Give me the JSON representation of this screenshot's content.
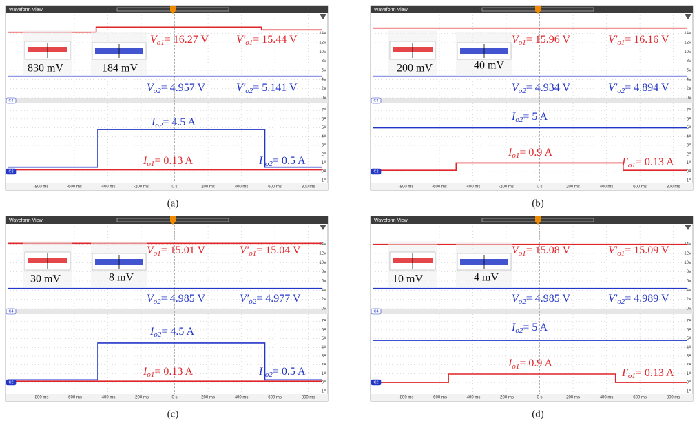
{
  "figure": {
    "header": "Waveform View",
    "channel_labels": [
      "C4",
      "C2"
    ],
    "xlim": [
      -1000,
      880
    ],
    "vlim": [
      -0.3,
      18
    ],
    "ilim": [
      -1.33,
      7.8
    ],
    "time_ticks": [
      {
        "value": -800,
        "label": "-800 ms"
      },
      {
        "value": -600,
        "label": "-600 ms"
      },
      {
        "value": -400,
        "label": "-400 ms"
      },
      {
        "value": -200,
        "label": "-200 ms"
      },
      {
        "value": 0,
        "label": "0 s"
      },
      {
        "value": 200,
        "label": "200 ms"
      },
      {
        "value": 400,
        "label": "400 ms"
      },
      {
        "value": 600,
        "label": "600 ms"
      },
      {
        "value": 800,
        "label": "800 ms"
      }
    ],
    "voltage_ticks": [
      {
        "value": 14,
        "label": "14V"
      },
      {
        "value": 12,
        "label": "12V"
      },
      {
        "value": 10,
        "label": "10V"
      },
      {
        "value": 8,
        "label": "8V"
      },
      {
        "value": 6,
        "label": "6V"
      },
      {
        "value": 4,
        "label": "4V"
      },
      {
        "value": 2,
        "label": "2V"
      },
      {
        "value": 0,
        "label": "0V"
      }
    ],
    "current_ticks": [
      {
        "value": 7,
        "label": "7A"
      },
      {
        "value": 6,
        "label": "6A"
      },
      {
        "value": 5,
        "label": "5A"
      },
      {
        "value": 4,
        "label": "4A"
      },
      {
        "value": 3,
        "label": "3A"
      },
      {
        "value": 2,
        "label": "2A"
      },
      {
        "value": 1,
        "label": "1A"
      },
      {
        "value": 0,
        "label": "0A"
      },
      {
        "value": -1,
        "label": "-1A"
      }
    ],
    "panels": [
      {
        "caption": "(a)",
        "voltage_traces": [
          {
            "color": "#e0262a",
            "points": [
              [
                -1000,
                14.3
              ],
              [
                -470,
                14.3
              ],
              [
                -470,
                15.4
              ],
              [
                520,
                15.4
              ],
              [
                520,
                14.8
              ],
              [
                880,
                14.8
              ]
            ]
          },
          {
            "color": "#2236c8",
            "points": [
              [
                -1000,
                4.7
              ],
              [
                880,
                4.7
              ]
            ]
          }
        ],
        "current_traces": [
          {
            "color": "#e0262a",
            "points": [
              [
                -1000,
                0.2
              ],
              [
                880,
                0.2
              ]
            ]
          },
          {
            "color": "#2236c8",
            "points": [
              [
                -1000,
                0.5
              ],
              [
                -460,
                0.5
              ],
              [
                -460,
                4.8
              ],
              [
                540,
                4.8
              ],
              [
                540,
                0.5
              ],
              [
                880,
                0.5
              ]
            ]
          }
        ],
        "annotations": [
          {
            "symbol": "V",
            "subscript": "o1",
            "text": "= 16.27 V",
            "color": "#e0262a"
          },
          {
            "symbol": "V′",
            "subscript": "o1",
            "text": "= 15.44 V",
            "color": "#e0262a"
          },
          {
            "symbol": "V",
            "subscript": "o2",
            "text": "= 4.957 V",
            "color": "#2236c8"
          },
          {
            "symbol": "V′",
            "subscript": "o2",
            "text": "= 5.141 V",
            "color": "#2236c8"
          },
          {
            "symbol": "I",
            "subscript": "o2",
            "text": "= 4.5 A",
            "color": "#2236c8"
          },
          {
            "symbol": "I",
            "subscript": "o1",
            "text": "= 0.13 A",
            "color": "#e0262a"
          },
          {
            "symbol": "I′",
            "subscript": "o2",
            "text": "= 0.5 A",
            "color": "#2236c8"
          }
        ],
        "insets": [
          "830 mV",
          "184 mV"
        ]
      },
      {
        "caption": "(b)",
        "voltage_traces": [
          {
            "color": "#e0262a",
            "points": [
              [
                -1000,
                15.2
              ],
              [
                880,
                15.2
              ]
            ]
          },
          {
            "color": "#2236c8",
            "points": [
              [
                -1000,
                4.7
              ],
              [
                880,
                4.7
              ]
            ]
          }
        ],
        "current_traces": [
          {
            "color": "#e0262a",
            "points": [
              [
                -1000,
                0.15
              ],
              [
                -500,
                0.15
              ],
              [
                -500,
                1.0
              ],
              [
                500,
                1.0
              ],
              [
                500,
                0.15
              ],
              [
                880,
                0.15
              ]
            ]
          },
          {
            "color": "#2236c8",
            "points": [
              [
                -1000,
                5.0
              ],
              [
                880,
                5.0
              ]
            ]
          }
        ],
        "annotations": [
          {
            "symbol": "V",
            "subscript": "o1",
            "text": "= 15.96 V",
            "color": "#e0262a"
          },
          {
            "symbol": "V′",
            "subscript": "o1",
            "text": "= 16.16 V",
            "color": "#e0262a"
          },
          {
            "symbol": "V",
            "subscript": "o2",
            "text": "= 4.934 V",
            "color": "#2236c8"
          },
          {
            "symbol": "V′",
            "subscript": "o2",
            "text": "= 4.894 V",
            "color": "#2236c8"
          },
          {
            "symbol": "I",
            "subscript": "o2",
            "text": "= 5 A",
            "color": "#2236c8"
          },
          {
            "symbol": "I",
            "subscript": "o1",
            "text": "= 0.9 A",
            "color": "#e0262a"
          },
          {
            "symbol": "I′",
            "subscript": "o1",
            "text": "= 0.13 A",
            "color": "#e0262a"
          }
        ],
        "insets": [
          "200 mV",
          "40 mV"
        ]
      },
      {
        "caption": "(c)",
        "voltage_traces": [
          {
            "color": "#e0262a",
            "points": [
              [
                -1000,
                14.2
              ],
              [
                880,
                14.2
              ]
            ]
          },
          {
            "color": "#2236c8",
            "points": [
              [
                -1000,
                4.4
              ],
              [
                880,
                4.4
              ]
            ]
          }
        ],
        "current_traces": [
          {
            "color": "#e0262a",
            "points": [
              [
                -1000,
                0.15
              ],
              [
                880,
                0.15
              ]
            ]
          },
          {
            "color": "#2236c8",
            "points": [
              [
                -1000,
                0.3
              ],
              [
                -460,
                0.3
              ],
              [
                -460,
                4.5
              ],
              [
                540,
                4.5
              ],
              [
                540,
                0.3
              ],
              [
                880,
                0.3
              ]
            ]
          }
        ],
        "annotations": [
          {
            "symbol": "V",
            "subscript": "o1",
            "text": "= 15.01 V",
            "color": "#e0262a"
          },
          {
            "symbol": "V′",
            "subscript": "o1",
            "text": "= 15.04 V",
            "color": "#e0262a"
          },
          {
            "symbol": "V",
            "subscript": "o2",
            "text": "= 4.985 V",
            "color": "#2236c8"
          },
          {
            "symbol": "V′",
            "subscript": "o2",
            "text": "= 4.977 V",
            "color": "#2236c8"
          },
          {
            "symbol": "I",
            "subscript": "o2",
            "text": "= 4.5 A",
            "color": "#2236c8"
          },
          {
            "symbol": "I",
            "subscript": "o1",
            "text": "= 0.13 A",
            "color": "#e0262a"
          },
          {
            "symbol": "I′",
            "subscript": "o2",
            "text": "= 0.5 A",
            "color": "#2236c8"
          }
        ],
        "insets": [
          "30 mV",
          "8 mV"
        ]
      },
      {
        "caption": "(d)",
        "voltage_traces": [
          {
            "color": "#e0262a",
            "points": [
              [
                -1000,
                14.0
              ],
              [
                880,
                14.0
              ]
            ]
          },
          {
            "color": "#2236c8",
            "points": [
              [
                -1000,
                4.4
              ],
              [
                880,
                4.4
              ]
            ]
          }
        ],
        "current_traces": [
          {
            "color": "#e0262a",
            "points": [
              [
                -1000,
                0
              ],
              [
                -546,
                0
              ],
              [
                -546,
                0.95
              ],
              [
                454,
                0.95
              ],
              [
                454,
                0
              ],
              [
                880,
                0
              ]
            ]
          },
          {
            "color": "#2236c8",
            "points": [
              [
                -1000,
                4.8
              ],
              [
                880,
                4.8
              ]
            ]
          }
        ],
        "annotations": [
          {
            "symbol": "V",
            "subscript": "o1",
            "text": "= 15.08 V",
            "color": "#e0262a"
          },
          {
            "symbol": "V′",
            "subscript": "o1",
            "text": "= 15.09 V",
            "color": "#e0262a"
          },
          {
            "symbol": "V",
            "subscript": "o2",
            "text": "= 4.985 V",
            "color": "#2236c8"
          },
          {
            "symbol": "V′",
            "subscript": "o2",
            "text": "= 4.989 V",
            "color": "#2236c8"
          },
          {
            "symbol": "I",
            "subscript": "o2",
            "text": "= 5 A",
            "color": "#2236c8"
          },
          {
            "symbol": "I",
            "subscript": "o1",
            "text": "= 0.9 A",
            "color": "#e0262a"
          },
          {
            "symbol": "I′",
            "subscript": "o1",
            "text": "= 0.13 A",
            "color": "#e0262a"
          }
        ],
        "insets": [
          "10 mV",
          "4 mV"
        ]
      }
    ]
  }
}
